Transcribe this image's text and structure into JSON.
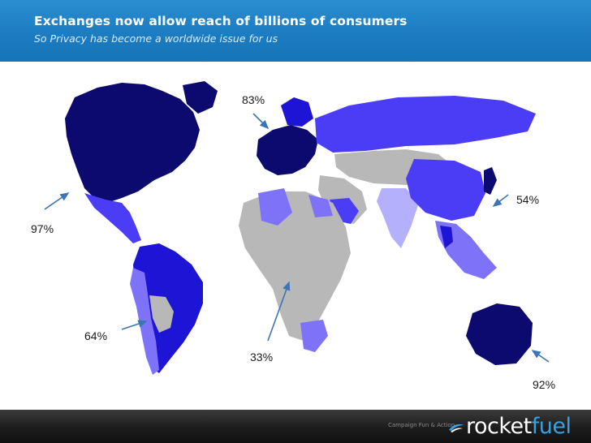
{
  "header": {
    "title": "Exchanges now allow reach of billions of consumers",
    "subtitle": "So Privacy has become a worldwide issue for us"
  },
  "map": {
    "colors": {
      "highest": "#0c0a6e",
      "high": "#1e14d6",
      "medium": "#4b3cf5",
      "low": "#7e72f8",
      "lowest": "#b5b0fb",
      "none": "#b8b8b8"
    },
    "callouts": {
      "north_america": "97%",
      "europe": "83%",
      "asia": "54%",
      "south_america": "64%",
      "africa": "33%",
      "australia": "92%"
    }
  },
  "footer": {
    "tagline": "Campaign Fun & Action",
    "logo_part1": "rocket",
    "logo_part2": "fuel"
  }
}
